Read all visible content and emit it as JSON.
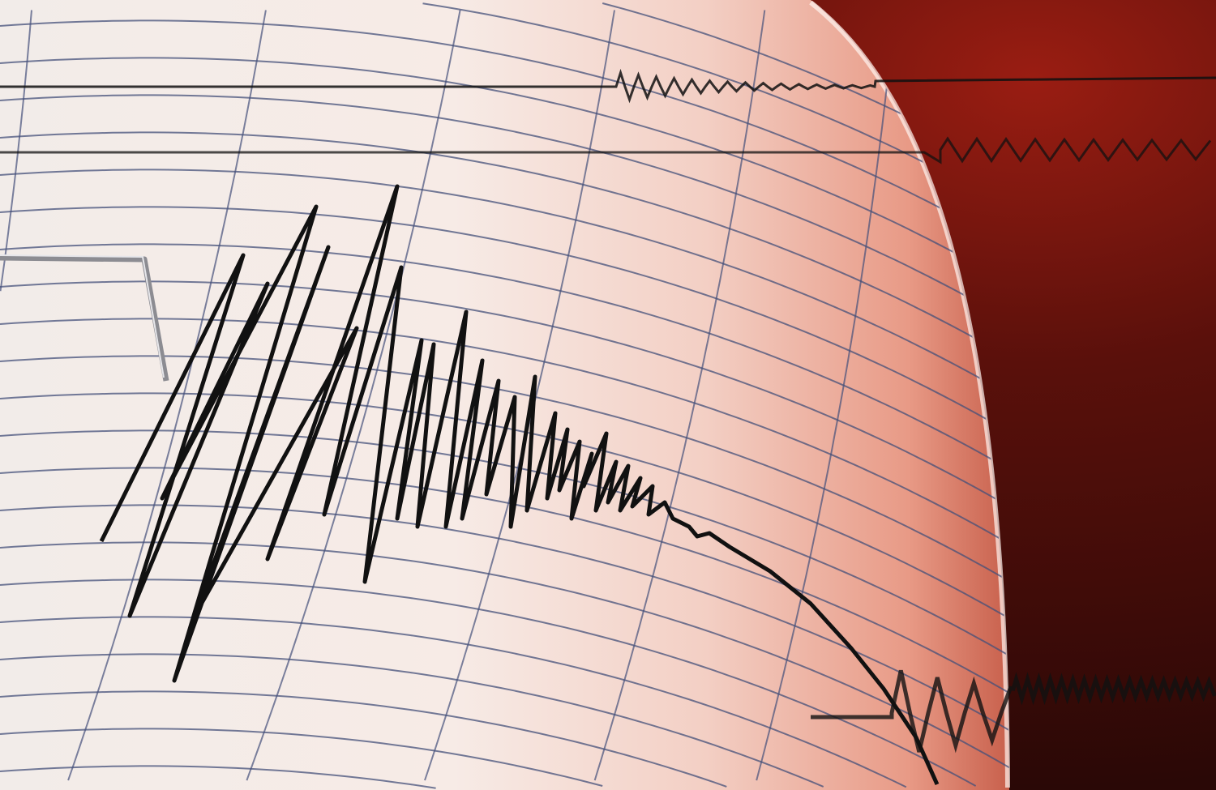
{
  "image": {
    "subject": "seismograph",
    "colors": {
      "paper_light": "#f6ece8",
      "paper_pink": "#f0b8a8",
      "background_dark": "#3a0a08",
      "background_red": "#8a1a10",
      "grid_line": "#44507a",
      "trace": "#111111",
      "stylus": "#9a9aa0"
    }
  }
}
